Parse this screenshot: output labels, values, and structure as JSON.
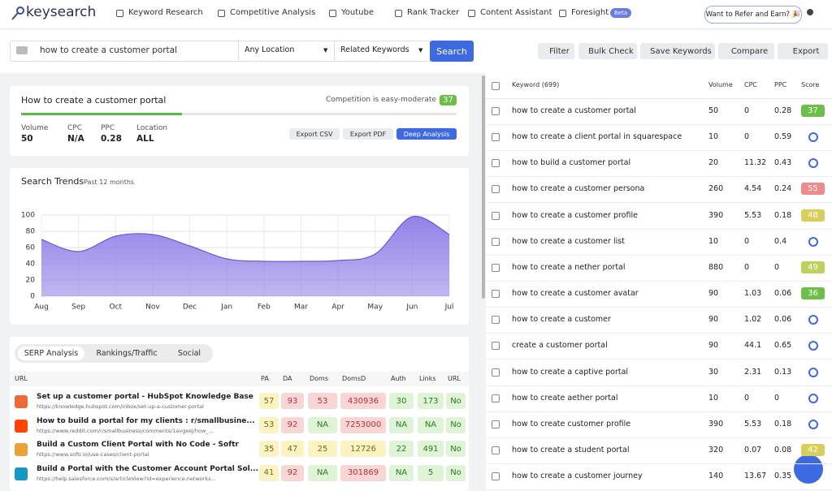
{
  "nav": {
    "brand": "keysearch",
    "items": [
      "Keyword Research",
      "Competitive Analysis",
      "Youtube",
      "Rank Tracker",
      "Content Assistant",
      "Foresight"
    ],
    "beta": "Beta",
    "refer": "Want to Refer and Earn? 🎉"
  },
  "search": {
    "query": "how to create a customer portal",
    "location": "Any Location",
    "mode": "Related Keywords",
    "button": "Search",
    "tools": [
      "Filter",
      "Bulk Check",
      "Save Keywords",
      "Compare",
      "Export"
    ]
  },
  "summary": {
    "title": "How to create a customer portal",
    "competition": "Competition is easy-moderate",
    "score": 37,
    "stats": [
      {
        "label": "Volume",
        "value": "50"
      },
      {
        "label": "CPC",
        "value": "N/A"
      },
      {
        "label": "PPC",
        "value": "0.28"
      },
      {
        "label": "Location",
        "value": "ALL"
      }
    ],
    "buttons": [
      "Export CSV",
      "Export PDF",
      "Deep Analysis"
    ]
  },
  "search_trends": {
    "type": "area",
    "title": "Search Trends",
    "subtitle": "Past 12 months",
    "categories": [
      "Aug",
      "Sep",
      "Oct",
      "Nov",
      "Dec",
      "Jan",
      "Feb",
      "Mar",
      "Apr",
      "May",
      "Jun",
      "Jul"
    ],
    "values": [
      70,
      55,
      74,
      76,
      62,
      46,
      43,
      43,
      44,
      52,
      98,
      76
    ],
    "color": "#8c7ce6",
    "ylim": [
      0,
      100
    ],
    "yticks": [
      0,
      20,
      40,
      60,
      80,
      100
    ],
    "grid": true
  },
  "serp": {
    "tabs": [
      "SERP Analysis",
      "Rankings/Traffic",
      "Social"
    ],
    "columns": [
      "URL",
      "PA",
      "DA",
      "Doms",
      "DomsD",
      "Auth",
      "Links",
      "URL"
    ],
    "rows": [
      {
        "title": "Set up a customer portal - HubSpot Knowledge Base",
        "url": "https://knowledge.hubspot.com/inbox/set-up-a-customer-portal",
        "metrics": [
          57,
          93,
          53,
          430936,
          30,
          173,
          "No"
        ]
      },
      {
        "title": "How to build a portal for my clients : r/smallbusine...",
        "url": "https://www.reddit.com/r/smallbusiness/comments/1avgxej/how_...",
        "metrics": [
          53,
          92,
          "NA",
          7253000,
          "NA",
          "NA",
          "No"
        ]
      },
      {
        "title": "Build a Custom Client Portal with No Code - Softr",
        "url": "https://www.softr.io/use-cases/client-portal",
        "metrics": [
          35,
          47,
          25,
          12726,
          22,
          491,
          "No"
        ]
      },
      {
        "title": "Build a Portal with the Customer Account Portal Sol...",
        "url": "https://help.salesforce.com/s/articleView?id=experience.networks...",
        "metrics": [
          41,
          92,
          "NA",
          301869,
          "NA",
          5,
          "No"
        ]
      }
    ]
  },
  "keywords": {
    "columns": [
      "Keyword (699)",
      "Volume",
      "CPC",
      "PPC",
      "Score"
    ],
    "rows": [
      [
        "how to create a customer portal",
        50,
        0,
        0.28,
        37
      ],
      [
        "how to create a client portal in squarespace",
        10,
        0,
        0.59,
        null
      ],
      [
        "how to build a customer portal",
        20,
        11.32,
        0.43,
        null
      ],
      [
        "how to create a customer persona",
        260,
        4.54,
        0.24,
        55
      ],
      [
        "how to create a customer profile",
        390,
        5.53,
        0.18,
        48
      ],
      [
        "how to create a customer list",
        10,
        0,
        0.4,
        null
      ],
      [
        "how to create a nether portal",
        880,
        0,
        0,
        49
      ],
      [
        "how to create a customer avatar",
        90,
        1.03,
        0.06,
        36
      ],
      [
        "how to create a customer",
        90,
        1.02,
        0.06,
        null
      ],
      [
        "create a customer portal",
        90,
        44.1,
        0.65,
        null
      ],
      [
        "how to create a captive portal",
        30,
        2.31,
        0.13,
        null
      ],
      [
        "how to create aether portal",
        10,
        0,
        0,
        null
      ],
      [
        "how to create customer profile",
        390,
        5.53,
        0.18,
        null
      ],
      [
        "how to create a student portal",
        320,
        0.07,
        0.08,
        42
      ],
      [
        "how to create a customer journey",
        140,
        13.67,
        0.35,
        null
      ]
    ]
  }
}
